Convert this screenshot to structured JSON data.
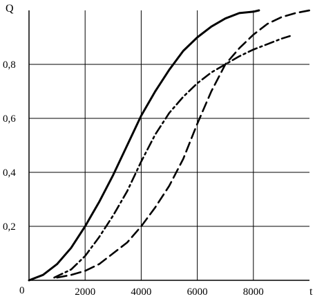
{
  "chart_data": {
    "type": "line",
    "title": "",
    "xlabel": "t",
    "ylabel": "Q",
    "origin_label": "0",
    "xlim": [
      0,
      10000
    ],
    "ylim": [
      0,
      1.0
    ],
    "x_ticks": [
      2000,
      4000,
      6000,
      8000
    ],
    "x_tick_labels": [
      "2000",
      "4000",
      "6000",
      "8000"
    ],
    "y_ticks": [
      0.2,
      0.4,
      0.6,
      0.8
    ],
    "y_tick_labels": [
      "0,2",
      "0,4",
      "0,6",
      "0,8"
    ],
    "grid": true,
    "legend": "none",
    "color": "#000000",
    "series": [
      {
        "style": "solid",
        "x": [
          0,
          500,
          1000,
          1500,
          2000,
          2500,
          3000,
          3500,
          4000,
          4500,
          5000,
          5500,
          6000,
          6500,
          7000,
          7500,
          8000,
          8200
        ],
        "y": [
          0,
          0.02,
          0.06,
          0.12,
          0.2,
          0.29,
          0.39,
          0.5,
          0.61,
          0.7,
          0.78,
          0.85,
          0.9,
          0.94,
          0.97,
          0.99,
          0.995,
          1.0
        ]
      },
      {
        "style": "dash-dot",
        "x": [
          900,
          1500,
          2000,
          2500,
          3000,
          3500,
          4000,
          4500,
          5000,
          5500,
          6000,
          6500,
          7000,
          7500,
          8000,
          8500,
          9000,
          9300
        ],
        "y": [
          0.01,
          0.04,
          0.09,
          0.16,
          0.24,
          0.33,
          0.44,
          0.54,
          0.62,
          0.68,
          0.73,
          0.77,
          0.8,
          0.83,
          0.855,
          0.875,
          0.895,
          0.905
        ]
      },
      {
        "style": "dashed",
        "x": [
          1000,
          1500,
          2000,
          2500,
          3000,
          3500,
          4000,
          4500,
          5000,
          5500,
          6000,
          6500,
          7000,
          7500,
          8000,
          8500,
          9000,
          9500,
          10000
        ],
        "y": [
          0.01,
          0.02,
          0.035,
          0.06,
          0.1,
          0.14,
          0.2,
          0.27,
          0.35,
          0.45,
          0.58,
          0.7,
          0.8,
          0.86,
          0.91,
          0.95,
          0.975,
          0.99,
          1.0
        ]
      }
    ]
  }
}
